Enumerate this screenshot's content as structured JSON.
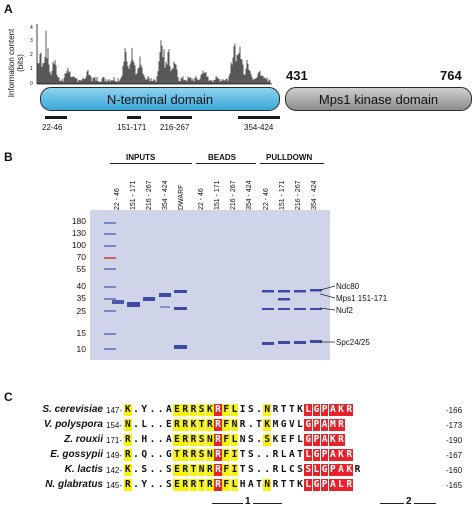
{
  "panelA": {
    "label": "A",
    "ylabel": "Information content (bits)",
    "yticks": [
      "4",
      "3",
      "2",
      "1",
      "0"
    ],
    "n_domain": "N-terminal domain",
    "kinase_domain": "Mps1 kinase domain",
    "pos_431": "431",
    "pos_764": "764",
    "fragments": [
      "22-46",
      "151-171",
      "216-267",
      "354-424"
    ]
  },
  "panelB": {
    "label": "B",
    "headers": {
      "inputs": "INPUTS",
      "beads": "BEADS",
      "pulldown": "PULLDOWN"
    },
    "input_lanes": [
      "22 - 46",
      "151 - 171",
      "216 - 267",
      "354 - 424",
      "DWARF"
    ],
    "bead_lanes": [
      "22 - 46",
      "151 - 171",
      "216 - 267",
      "354 - 424"
    ],
    "pulldown_lanes": [
      "22 - 46",
      "151 - 171",
      "216 - 267",
      "354 - 424"
    ],
    "mw_markers": [
      "180",
      "130",
      "100",
      "70",
      "55",
      "40",
      "35",
      "25",
      "15",
      "10"
    ],
    "band_labels": [
      "Ndc80",
      "Mps1 151-171",
      "Nuf2",
      "Spc24/25"
    ],
    "colors": {
      "gel": "#cfd4e8",
      "band": "#3e4aa0"
    }
  },
  "panelC": {
    "label": "C",
    "rows": [
      {
        "species": "S. cerevisiae",
        "start": "147-",
        "seq": "K.Y..AERRSKRFLIS.NRTTKLGPAKR",
        "end": "-166"
      },
      {
        "species": "V. polyspora",
        "start": "154-",
        "seq": "N.L..ERRKTRRFNR.TKMGVLGPAMR",
        "end": "-173"
      },
      {
        "species": "Z. rouxii",
        "start": "171-",
        "seq": "R.H..AERRSNRFLNS.SKEFLGPAKR",
        "end": "-190"
      },
      {
        "species": "E. gossypii",
        "start": "149-",
        "seq": "R.Q..GTRRSNRFITS..RLATLGPAKR",
        "end": "-167"
      },
      {
        "species": "K. lactis",
        "start": "142-",
        "seq": "K.S..SERTNRRFITS..RLCSSLGPAKR",
        "end": "-160"
      },
      {
        "species": "N. glabratus",
        "start": "145-",
        "seq": "R.Y..SERRTRRFLHATNRTTKLGPALR",
        "end": "-165"
      }
    ],
    "motif_labels": [
      "1",
      "2"
    ],
    "colors": {
      "yellow": "#f7f30a",
      "red": "#e8222a"
    }
  }
}
